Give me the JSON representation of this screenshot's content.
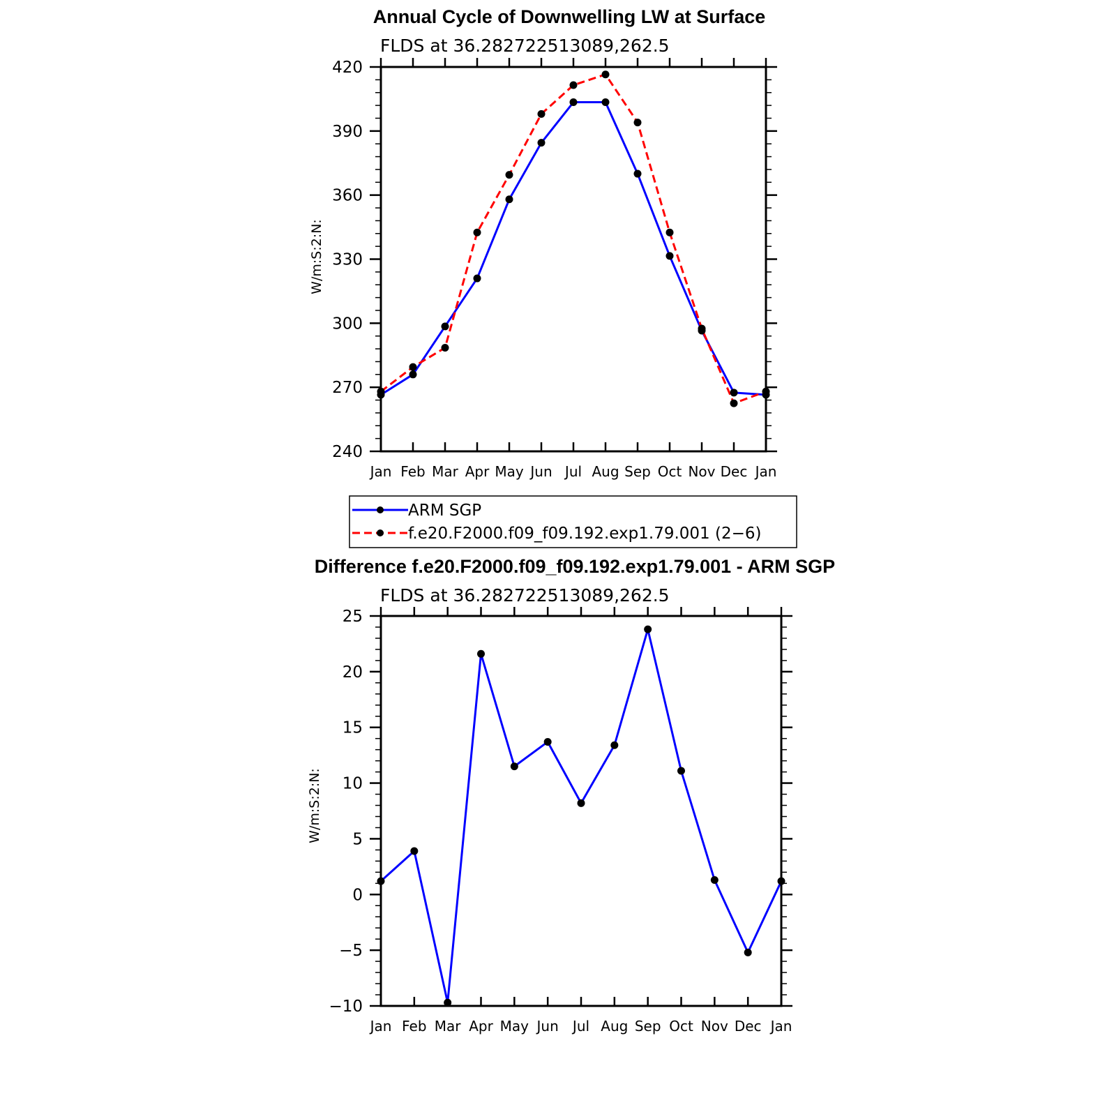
{
  "chart_data": [
    {
      "type": "line",
      "title": "Annual Cycle of Downwelling LW at Surface",
      "subtitle": "FLDS at 36.282722513089,262.5",
      "ylabel": "W/m:S:2:N:",
      "xlabel": "",
      "categories": [
        "Jan",
        "Feb",
        "Mar",
        "Apr",
        "May",
        "Jun",
        "Jul",
        "Aug",
        "Sep",
        "Oct",
        "Nov",
        "Dec",
        "Jan"
      ],
      "ylim": [
        240,
        420
      ],
      "yticks": [
        240,
        270,
        300,
        330,
        360,
        390,
        420
      ],
      "ytick_labels": [
        "240",
        "270",
        "300",
        "330",
        "360",
        "390",
        "420"
      ],
      "grid": false,
      "legend_position": "bottom",
      "series": [
        {
          "name": "ARM SGP",
          "color": "#0000ff",
          "dash": "solid",
          "values": [
            266.5,
            276,
            298.5,
            321,
            358,
            384.5,
            403.5,
            403.5,
            370,
            331.5,
            296.5,
            267.5,
            266.5
          ]
        },
        {
          "name": "f.e20.F2000.f09_f09.192.exp1.79.001 (2−6)",
          "color": "#ff0000",
          "dash": "dashed",
          "values": [
            268,
            279.5,
            288.5,
            342.5,
            369.5,
            398,
            411.5,
            416.5,
            394,
            342.5,
            297.5,
            262.5,
            268
          ]
        }
      ]
    },
    {
      "type": "line",
      "title": "Difference f.e20.F2000.f09_f09.192.exp1.79.001 - ARM SGP",
      "subtitle": "FLDS at 36.282722513089,262.5",
      "ylabel": "W/m:S:2:N:",
      "xlabel": "",
      "categories": [
        "Jan",
        "Feb",
        "Mar",
        "Apr",
        "May",
        "Jun",
        "Jul",
        "Aug",
        "Sep",
        "Oct",
        "Nov",
        "Dec",
        "Jan"
      ],
      "ylim": [
        -10,
        25
      ],
      "yticks": [
        -10,
        -5,
        0,
        5,
        10,
        15,
        20,
        25
      ],
      "ytick_labels": [
        "−10",
        "−5",
        "0",
        "5",
        "10",
        "15",
        "20",
        "25"
      ],
      "grid": false,
      "series": [
        {
          "color": "#0000ff",
          "dash": "solid",
          "values": [
            1.2,
            3.9,
            -9.7,
            21.6,
            11.5,
            13.7,
            8.2,
            13.4,
            23.8,
            11.1,
            1.3,
            -5.2,
            1.2
          ]
        }
      ]
    }
  ]
}
